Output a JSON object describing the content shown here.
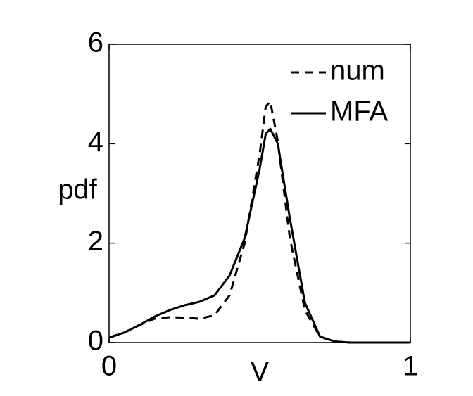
{
  "chart_data": {
    "type": "line",
    "xlabel": "V",
    "ylabel": "pdf",
    "x": [
      0,
      0.05,
      0.1,
      0.15,
      0.2,
      0.25,
      0.3,
      0.35,
      0.4,
      0.45,
      0.5,
      0.52,
      0.535,
      0.56,
      0.6,
      0.65,
      0.7,
      0.75,
      0.8,
      0.9,
      1
    ],
    "series": [
      {
        "name": "num",
        "color": "#000000",
        "linestyle": "--",
        "values": [
          0.1,
          0.2,
          0.35,
          0.48,
          0.51,
          0.5,
          0.48,
          0.55,
          0.95,
          2.0,
          3.8,
          4.75,
          4.85,
          4.05,
          2.1,
          0.65,
          0.12,
          0.02,
          0,
          0,
          0
        ]
      },
      {
        "name": "MFA",
        "color": "#000000",
        "linestyle": "-",
        "values": [
          0.1,
          0.2,
          0.35,
          0.52,
          0.65,
          0.75,
          0.82,
          0.95,
          1.35,
          2.1,
          3.5,
          4.2,
          4.3,
          4.0,
          2.5,
          0.8,
          0.12,
          0.02,
          0,
          0,
          0
        ]
      }
    ],
    "xlim": [
      0,
      1
    ],
    "xticks": [
      0,
      1
    ],
    "ylim": [
      0,
      6
    ],
    "yticks": [
      0,
      2,
      4,
      6
    ],
    "legend": "northeast",
    "grid": false
  }
}
